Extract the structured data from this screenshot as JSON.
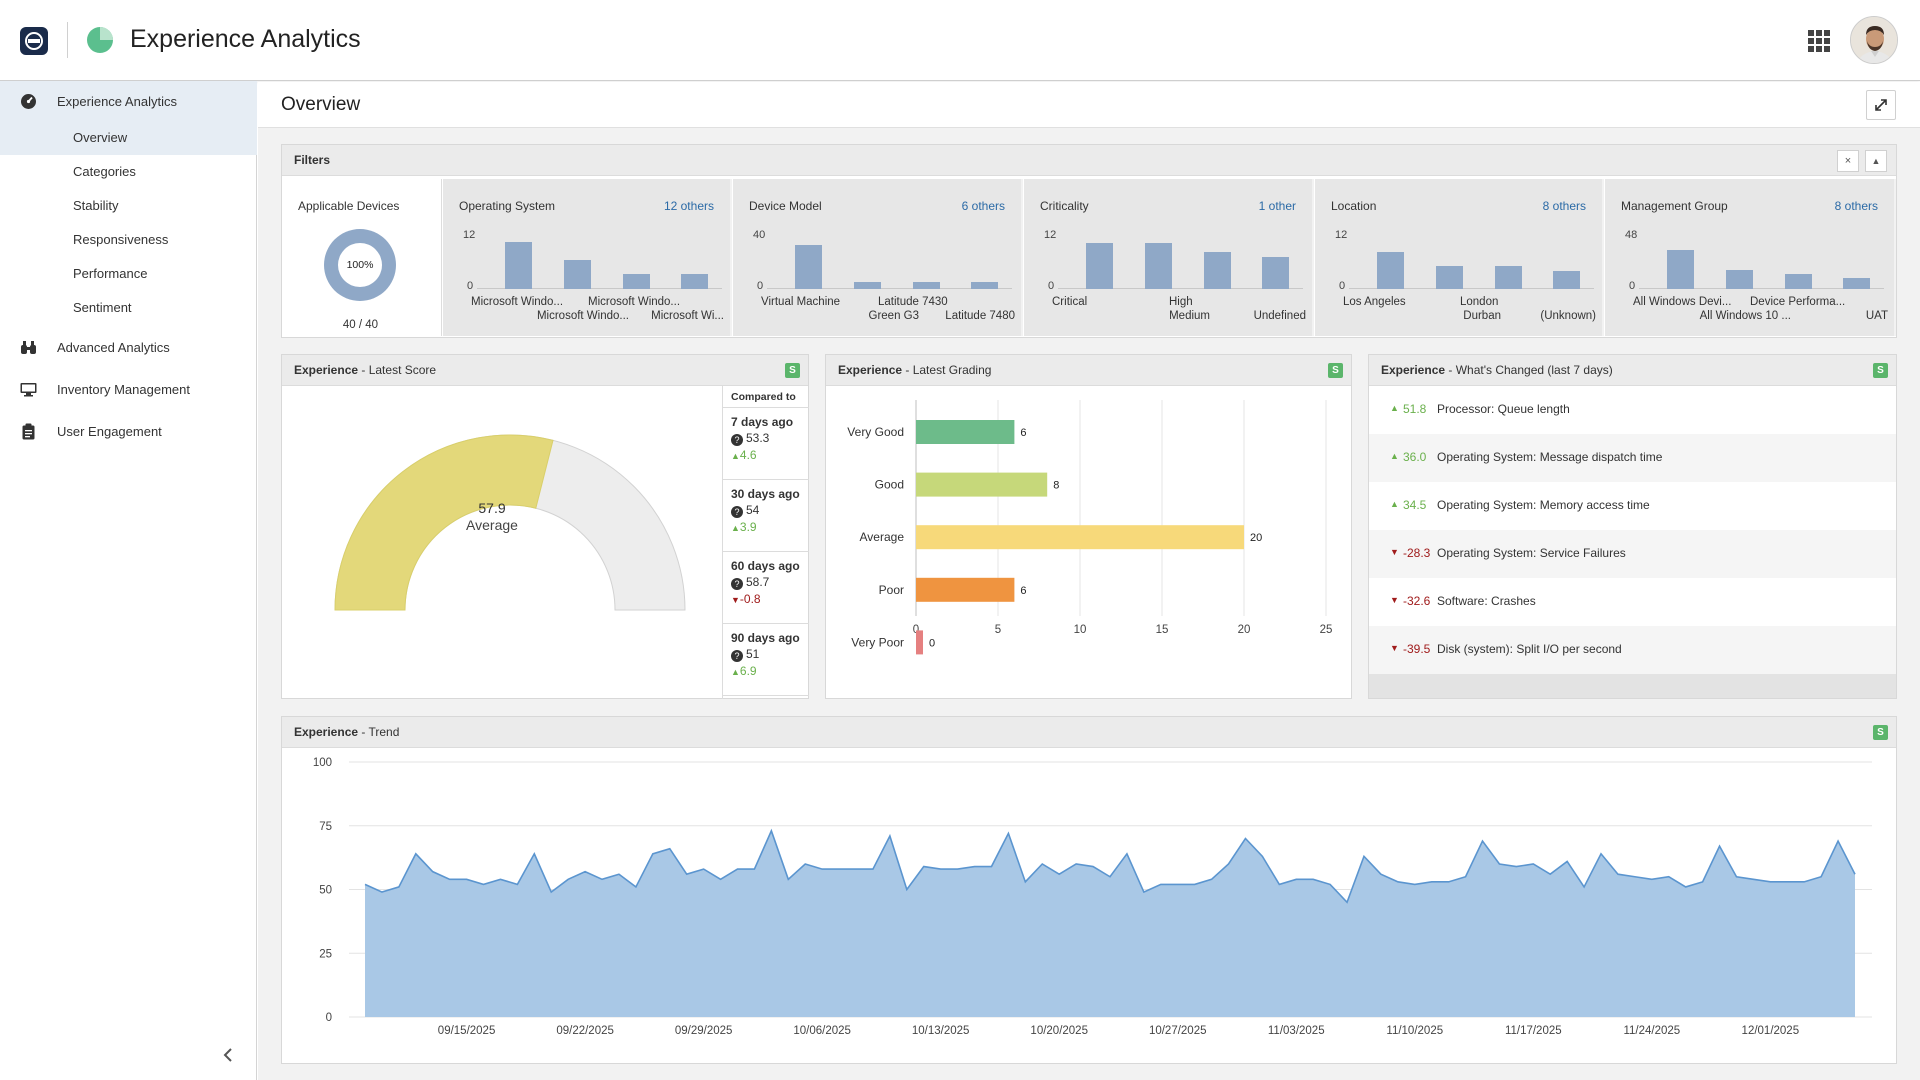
{
  "header": {
    "title": "Experience Analytics"
  },
  "sidebar": {
    "sections": [
      {
        "label": "Experience Analytics",
        "icon": "gauge-icon"
      },
      {
        "label": "Advanced Analytics",
        "icon": "binoculars-icon"
      },
      {
        "label": "Inventory Management",
        "icon": "monitor-icon"
      },
      {
        "label": "User Engagement",
        "icon": "clipboard-icon"
      }
    ],
    "subitems": [
      "Overview",
      "Categories",
      "Stability",
      "Responsiveness",
      "Performance",
      "Sentiment"
    ]
  },
  "page": {
    "title": "Overview"
  },
  "filters": {
    "title": "Filters",
    "close_glyph": "×",
    "collapse_glyph": "▲",
    "applicable": {
      "title": "Applicable Devices",
      "percent": "100%",
      "count": "40 / 40"
    },
    "boxes": [
      {
        "title": "Operating System",
        "others": "12 others",
        "ymax": "12",
        "ymin": "0",
        "bars": [
          0.85,
          0.52,
          0.28,
          0.28
        ],
        "labels_top": [
          "Microsoft Windo...",
          "Microsoft Windo..."
        ],
        "labels_bottom": [
          "Microsoft Windo...",
          "Microsoft Wi..."
        ]
      },
      {
        "title": "Device Model",
        "others": "6 others",
        "ymax": "40",
        "ymin": "0",
        "bars": [
          0.8,
          0.12,
          0.12,
          0.12
        ],
        "labels_top": [
          "Virtual Machine",
          "Latitude 7430"
        ],
        "labels_bottom": [
          "Green G3",
          "Latitude 7480"
        ]
      },
      {
        "title": "Criticality",
        "others": "1 other",
        "ymax": "12",
        "ymin": "0",
        "bars": [
          0.83,
          0.83,
          0.67,
          0.58
        ],
        "labels_top": [
          "Critical",
          "High"
        ],
        "labels_bottom": [
          "Medium",
          "Undefined"
        ]
      },
      {
        "title": "Location",
        "others": "8 others",
        "ymax": "12",
        "ymin": "0",
        "bars": [
          0.67,
          0.42,
          0.42,
          0.33
        ],
        "labels_top": [
          "Los Angeles",
          "London"
        ],
        "labels_bottom": [
          "Durban",
          "(Unknown)"
        ]
      },
      {
        "title": "Management Group",
        "others": "8 others",
        "ymax": "48",
        "ymin": "0",
        "bars": [
          0.71,
          0.35,
          0.27,
          0.2
        ],
        "labels_top": [
          "All Windows Devi...",
          "Device Performa..."
        ],
        "labels_bottom": [
          "All Windows 10 ...",
          "UAT"
        ]
      }
    ]
  },
  "latest_score": {
    "title_bold": "Experience",
    "title_rest": " - Latest Score",
    "badge": "S",
    "score": "57.9",
    "score_value": 57.9,
    "grade": "Average",
    "gauge_color": "#e3d87a",
    "compare_header": "Compared to",
    "comparisons": [
      {
        "label": "7 days ago",
        "value": "53.3",
        "change": "4.6",
        "dir": "up"
      },
      {
        "label": "30 days ago",
        "value": "54",
        "change": "3.9",
        "dir": "up"
      },
      {
        "label": "60 days ago",
        "value": "58.7",
        "change": "-0.8",
        "dir": "down"
      },
      {
        "label": "90 days ago",
        "value": "51",
        "change": "6.9",
        "dir": "up"
      }
    ]
  },
  "latest_grading": {
    "title_bold": "Experience",
    "title_rest": " - Latest Grading",
    "badge": "S"
  },
  "whats_changed": {
    "title_bold": "Experience",
    "title_rest": " - What's Changed (last 7 days)",
    "badge": "S",
    "items": [
      {
        "value": "51.8",
        "label": "Processor: Queue length",
        "dir": "up"
      },
      {
        "value": "36.0",
        "label": "Operating System: Message dispatch time",
        "dir": "up"
      },
      {
        "value": "34.5",
        "label": "Operating System: Memory access time",
        "dir": "up"
      },
      {
        "value": "-28.3",
        "label": "Operating System: Service Failures",
        "dir": "down"
      },
      {
        "value": "-32.6",
        "label": "Software: Crashes",
        "dir": "down"
      },
      {
        "value": "-39.5",
        "label": "Disk (system): Split I/O per second",
        "dir": "down"
      }
    ]
  },
  "trend": {
    "title_bold": "Experience",
    "title_rest": " - Trend",
    "badge": "S"
  },
  "colors": {
    "very_good": "#6dbb8a",
    "good": "#c6d87a",
    "average": "#f7d97a",
    "poor": "#ef9440",
    "very_poor": "#e58080",
    "trend_fill": "#a9c8e6",
    "trend_line": "#5b95cf",
    "filter_bar": "#8fa8c7"
  },
  "chart_data": [
    {
      "type": "bar",
      "orientation": "horizontal",
      "categories": [
        "Very Good",
        "Good",
        "Average",
        "Poor",
        "Very Poor"
      ],
      "values": [
        6,
        8,
        20,
        6,
        0
      ],
      "xlim": [
        0,
        25
      ],
      "xticks": [
        "0",
        "5",
        "10",
        "15",
        "20",
        "25"
      ],
      "grid": true
    },
    {
      "type": "area",
      "ylim": [
        0,
        100
      ],
      "yticks": [
        "0",
        "25",
        "50",
        "75",
        "100"
      ],
      "xtick_labels": [
        "09/15/2025",
        "09/22/2025",
        "09/29/2025",
        "10/06/2025",
        "10/13/2025",
        "10/20/2025",
        "10/27/2025",
        "11/03/2025",
        "11/10/2025",
        "11/17/2025",
        "11/24/2025",
        "12/01/2025"
      ],
      "first_date": "09/09/2025",
      "values": [
        52,
        49,
        51,
        64,
        57,
        54,
        54,
        52,
        54,
        52,
        64,
        49,
        54,
        57,
        54,
        56,
        51,
        64,
        66,
        56,
        58,
        54,
        58,
        58,
        73,
        54,
        60,
        58,
        58,
        58,
        58,
        71,
        50,
        59,
        58,
        58,
        59,
        59,
        72,
        53,
        60,
        56,
        60,
        59,
        55,
        64,
        49,
        52,
        52,
        52,
        54,
        60,
        70,
        63,
        52,
        54,
        54,
        52,
        45,
        63,
        56,
        53,
        52,
        53,
        53,
        55,
        69,
        60,
        59,
        60,
        56,
        61,
        51,
        64,
        56,
        55,
        54,
        55,
        51,
        53,
        67,
        55,
        54,
        53,
        53,
        53,
        55,
        69,
        56
      ],
      "grid": true
    }
  ]
}
